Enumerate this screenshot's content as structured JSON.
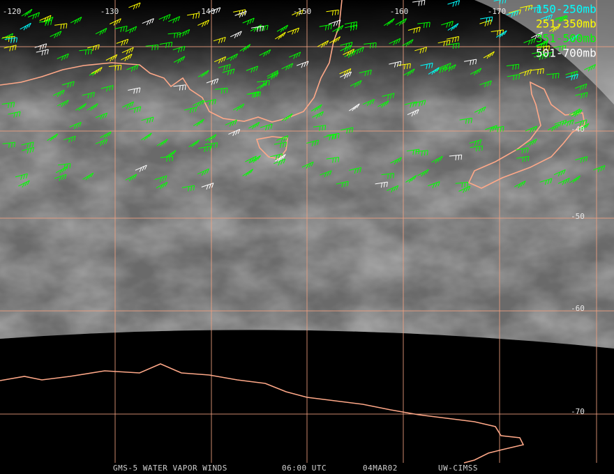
{
  "longitude_labels": [
    "-120",
    "-130",
    "-140",
    "-150",
    "-160",
    "-170"
  ],
  "latitude_labels": [
    "-40",
    "-50",
    "-60",
    "-70"
  ],
  "legend": [
    {
      "label": "150-250mb",
      "color": "#00ffff"
    },
    {
      "label": "251-350mb",
      "color": "#ffff00"
    },
    {
      "label": "351-500mb",
      "color": "#00ff00"
    },
    {
      "label": "501-700mb",
      "color": "#ffffff"
    }
  ],
  "footer": {
    "product": "GMS-5 WATER VAPOR WINDS",
    "time": "06:00 UTC",
    "date": "04MAR02",
    "source": "UW-CIMSS"
  }
}
